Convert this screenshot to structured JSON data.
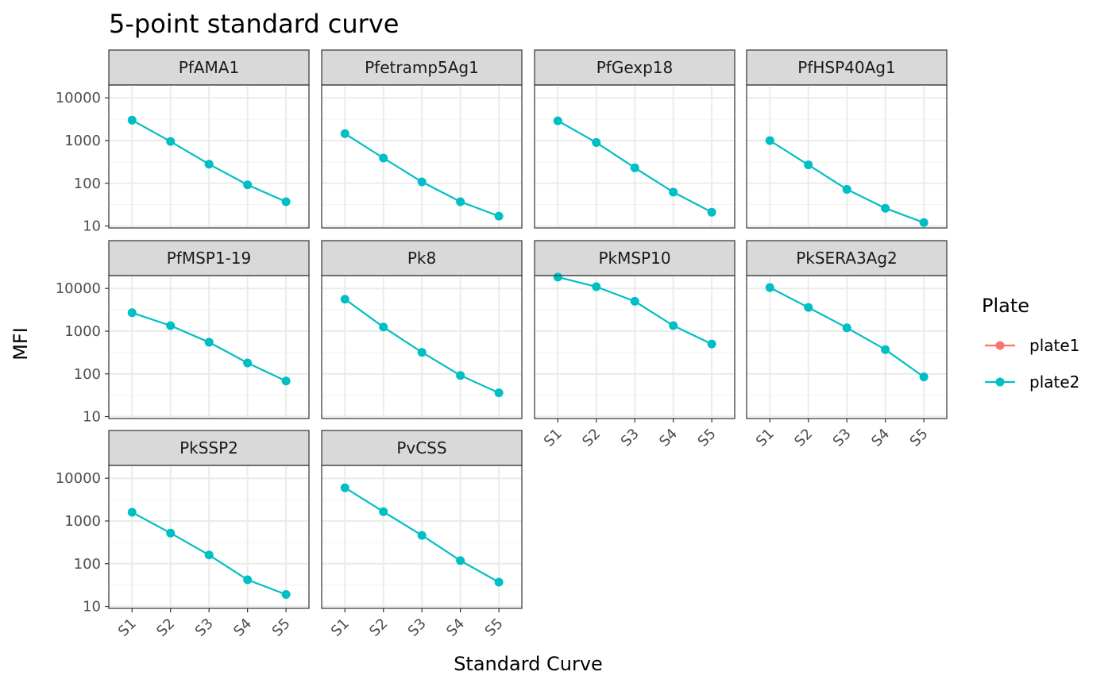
{
  "chart_data": {
    "type": "line",
    "title": "5-point standard curve",
    "xlabel": "Standard Curve",
    "ylabel": "MFI",
    "y_scale": "log10",
    "ylim": [
      9,
      20000
    ],
    "y_ticks": [
      10,
      100,
      1000,
      10000
    ],
    "y_tick_labels": [
      "10",
      "100",
      "1000",
      "10000"
    ],
    "categories": [
      "S1",
      "S2",
      "S3",
      "S4",
      "S5"
    ],
    "legend": {
      "title": "Plate",
      "position": "right",
      "entries": [
        {
          "name": "plate1",
          "color": "#F8766D"
        },
        {
          "name": "plate2",
          "color": "#00BFC4"
        }
      ]
    },
    "panels": [
      {
        "name": "PfAMA1",
        "series": [
          {
            "plate": "plate2",
            "values": [
              3000,
              950,
              280,
              92,
              37
            ]
          }
        ]
      },
      {
        "name": "Pfetramp5Ag1",
        "series": [
          {
            "plate": "plate2",
            "values": [
              1450,
              390,
              108,
              37,
              17
            ]
          }
        ]
      },
      {
        "name": "PfGexp18",
        "series": [
          {
            "plate": "plate2",
            "values": [
              2900,
              900,
              230,
              62,
              21
            ]
          }
        ]
      },
      {
        "name": "PfHSP40Ag1",
        "series": [
          {
            "plate": "plate2",
            "values": [
              1000,
              270,
              72,
              26,
              12
            ]
          }
        ]
      },
      {
        "name": "PfMSP1-19",
        "series": [
          {
            "plate": "plate2",
            "values": [
              2700,
              1350,
              550,
              180,
              68
            ]
          }
        ]
      },
      {
        "name": "Pk8",
        "series": [
          {
            "plate": "plate2",
            "values": [
              5600,
              1250,
              320,
              92,
              36
            ]
          }
        ]
      },
      {
        "name": "PkMSP10",
        "series": [
          {
            "plate": "plate2",
            "values": [
              18500,
              11000,
              5000,
              1350,
              500
            ]
          }
        ]
      },
      {
        "name": "PkSERA3Ag2",
        "series": [
          {
            "plate": "plate2",
            "values": [
              10500,
              3600,
              1200,
              370,
              85
            ]
          }
        ]
      },
      {
        "name": "PkSSP2",
        "series": [
          {
            "plate": "plate2",
            "values": [
              1600,
              520,
              160,
              42,
              19
            ]
          }
        ]
      },
      {
        "name": "PvCSS",
        "series": [
          {
            "plate": "plate2",
            "values": [
              6000,
              1650,
              460,
              118,
              37
            ]
          }
        ]
      }
    ]
  }
}
